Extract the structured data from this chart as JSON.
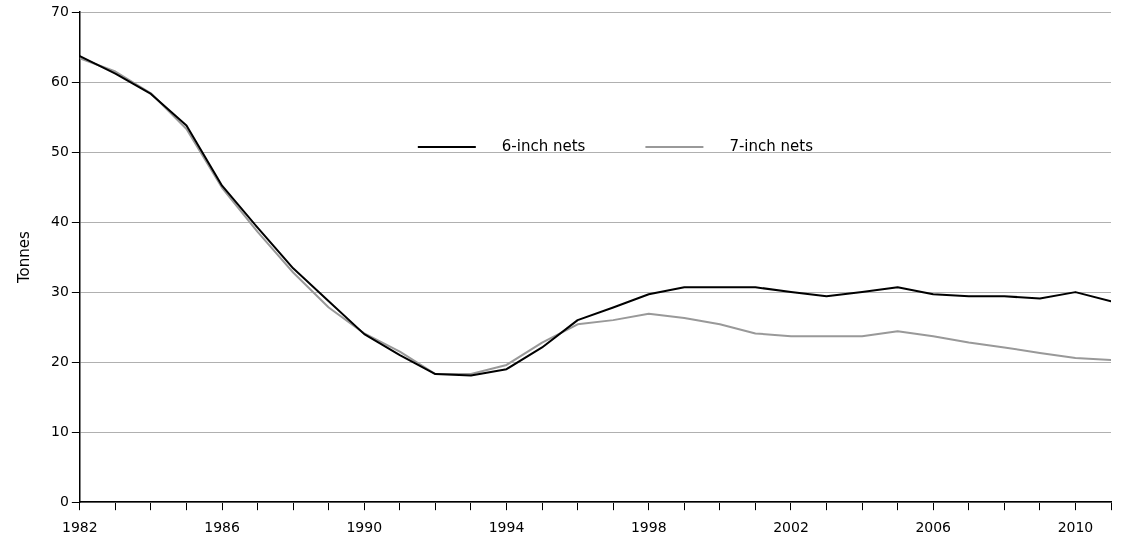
{
  "chart_data": {
    "type": "line",
    "ylabel": "Tonnes",
    "x": [
      1982,
      1983,
      1984,
      1985,
      1986,
      1987,
      1988,
      1989,
      1990,
      1991,
      1992,
      1993,
      1994,
      1995,
      1996,
      1997,
      1998,
      1999,
      2000,
      2001,
      2002,
      2003,
      2004,
      2005,
      2006,
      2007,
      2008,
      2009,
      2010,
      2011
    ],
    "series": [
      {
        "name": "6-inch nets",
        "color": "#000000",
        "values": [
          63.7,
          61.2,
          58.3,
          53.8,
          45.2,
          39.2,
          33.4,
          28.7,
          24.0,
          21.0,
          18.3,
          18.1,
          19.0,
          22.1,
          26.0,
          27.8,
          29.7,
          30.7,
          30.7,
          30.7,
          30.0,
          29.4,
          30.0,
          30.7,
          29.7,
          29.4,
          29.4,
          29.1,
          30.0,
          28.7
        ]
      },
      {
        "name": "7-inch nets",
        "color": "#999999",
        "values": [
          63.4,
          61.5,
          58.4,
          53.3,
          44.9,
          38.6,
          32.8,
          27.8,
          24.1,
          21.5,
          18.3,
          18.3,
          19.6,
          22.8,
          25.4,
          26.0,
          26.9,
          26.3,
          25.4,
          24.1,
          23.7,
          23.7,
          23.7,
          24.4,
          23.7,
          22.8,
          22.1,
          21.3,
          20.6,
          20.3
        ]
      }
    ],
    "xlim": [
      1982,
      2011
    ],
    "xticks": [
      1982,
      {
        "value": 1983,
        "label": null
      },
      {
        "value": 1984,
        "label": null
      },
      {
        "value": 1985,
        "label": null
      },
      1986,
      {
        "value": 1987,
        "label": null
      },
      {
        "value": 1988,
        "label": null
      },
      {
        "value": 1989,
        "label": null
      },
      1990,
      {
        "value": 1991,
        "label": null
      },
      {
        "value": 1992,
        "label": null
      },
      {
        "value": 1993,
        "label": null
      },
      1994,
      {
        "value": 1995,
        "label": null
      },
      {
        "value": 1996,
        "label": null
      },
      {
        "value": 1997,
        "label": null
      },
      1998,
      {
        "value": 1999,
        "label": null
      },
      {
        "value": 2000,
        "label": null
      },
      {
        "value": 2001,
        "label": null
      },
      2002,
      {
        "value": 2003,
        "label": null
      },
      {
        "value": 2004,
        "label": null
      },
      {
        "value": 2005,
        "label": null
      },
      2006,
      {
        "value": 2007,
        "label": null
      },
      {
        "value": 2008,
        "label": null
      },
      {
        "value": 2009,
        "label": null
      },
      2010,
      {
        "value": 2011,
        "label": null
      }
    ],
    "ylim": [
      0,
      70
    ],
    "yticks": [
      0,
      10,
      20,
      30,
      40,
      50,
      60,
      70
    ],
    "grid": "y",
    "legend": "top",
    "marker": "none",
    "line_style": "solid"
  }
}
